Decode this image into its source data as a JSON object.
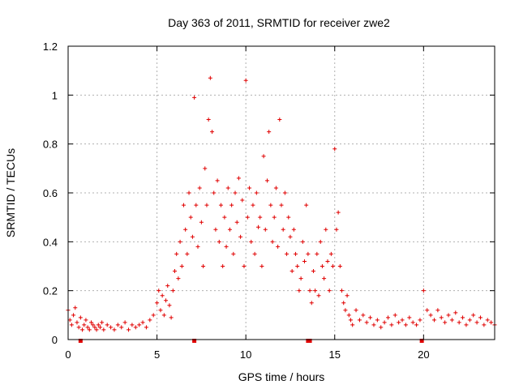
{
  "chart_data": {
    "type": "scatter",
    "title": "Day 363 of 2011, SRMTID for receiver zwe2",
    "xlabel": "GPS time / hours",
    "ylabel": "SRMTID / TECUs",
    "xlim": [
      0,
      24
    ],
    "ylim": [
      0,
      1.2
    ],
    "xticks": [
      0,
      5,
      10,
      15,
      20
    ],
    "xtick_labels": [
      "0",
      "5",
      "10",
      "15",
      "20"
    ],
    "yticks": [
      0,
      0.2,
      0.4,
      0.6,
      0.8,
      1,
      1.2
    ],
    "ytick_labels": [
      "0",
      "0.2",
      "0.4",
      "0.6",
      "0.8",
      "1",
      "1.2"
    ],
    "grid": true,
    "marker": "+",
    "marker_color": "#e00000",
    "series": [
      {
        "name": "zwe2",
        "description": "approximate sampled envelope of the plotted scatter",
        "x": [
          0.0,
          0.1,
          0.2,
          0.3,
          0.4,
          0.5,
          0.6,
          0.7,
          0.8,
          0.9,
          1.0,
          1.1,
          1.2,
          1.3,
          1.4,
          1.5,
          1.6,
          1.7,
          1.8,
          1.9,
          2.0,
          2.2,
          2.4,
          2.6,
          2.8,
          3.0,
          3.2,
          3.4,
          3.6,
          3.8,
          4.0,
          4.2,
          4.4,
          4.6,
          4.8,
          5.0,
          5.1,
          5.2,
          5.3,
          5.4,
          5.5,
          5.6,
          5.7,
          5.8,
          5.9,
          6.0,
          6.1,
          6.2,
          6.3,
          6.4,
          6.5,
          6.6,
          6.7,
          6.8,
          6.9,
          7.0,
          7.1,
          7.2,
          7.3,
          7.4,
          7.5,
          7.6,
          7.7,
          7.8,
          7.9,
          8.0,
          8.1,
          8.2,
          8.3,
          8.4,
          8.5,
          8.6,
          8.7,
          8.8,
          8.9,
          9.0,
          9.1,
          9.2,
          9.3,
          9.4,
          9.5,
          9.6,
          9.7,
          9.8,
          9.9,
          10.0,
          10.1,
          10.2,
          10.3,
          10.4,
          10.5,
          10.6,
          10.7,
          10.8,
          10.9,
          11.0,
          11.1,
          11.2,
          11.3,
          11.4,
          11.5,
          11.6,
          11.7,
          11.8,
          11.9,
          12.0,
          12.1,
          12.2,
          12.3,
          12.4,
          12.5,
          12.6,
          12.7,
          12.8,
          12.9,
          13.0,
          13.1,
          13.2,
          13.3,
          13.4,
          13.5,
          13.6,
          13.7,
          13.8,
          13.9,
          14.0,
          14.1,
          14.2,
          14.3,
          14.4,
          14.5,
          14.6,
          14.7,
          14.8,
          14.9,
          15.0,
          15.1,
          15.2,
          15.3,
          15.4,
          15.5,
          15.6,
          15.7,
          15.8,
          15.9,
          16.0,
          16.2,
          16.4,
          16.6,
          16.8,
          17.0,
          17.2,
          17.4,
          17.6,
          17.8,
          18.0,
          18.2,
          18.4,
          18.6,
          18.8,
          19.0,
          19.2,
          19.4,
          19.6,
          19.8,
          20.0,
          20.2,
          20.4,
          20.6,
          20.8,
          21.0,
          21.2,
          21.4,
          21.6,
          21.8,
          22.0,
          22.2,
          22.4,
          22.6,
          22.8,
          23.0,
          23.2,
          23.4,
          23.6,
          23.8,
          24.0
        ],
        "y": [
          0.12,
          0.08,
          0.06,
          0.1,
          0.13,
          0.07,
          0.05,
          0.09,
          0.04,
          0.06,
          0.08,
          0.05,
          0.04,
          0.07,
          0.06,
          0.05,
          0.04,
          0.06,
          0.05,
          0.07,
          0.04,
          0.06,
          0.05,
          0.04,
          0.06,
          0.05,
          0.07,
          0.04,
          0.06,
          0.05,
          0.06,
          0.07,
          0.05,
          0.08,
          0.1,
          0.15,
          0.2,
          0.12,
          0.18,
          0.1,
          0.16,
          0.22,
          0.14,
          0.09,
          0.2,
          0.28,
          0.35,
          0.25,
          0.4,
          0.3,
          0.55,
          0.45,
          0.35,
          0.6,
          0.5,
          0.42,
          0.99,
          0.55,
          0.38,
          0.62,
          0.48,
          0.3,
          0.7,
          0.55,
          0.9,
          1.07,
          0.85,
          0.6,
          0.45,
          0.65,
          0.4,
          0.55,
          0.3,
          0.5,
          0.38,
          0.62,
          0.45,
          0.55,
          0.35,
          0.6,
          0.48,
          0.66,
          0.42,
          0.57,
          0.3,
          1.06,
          0.5,
          0.62,
          0.4,
          0.55,
          0.35,
          0.6,
          0.46,
          0.5,
          0.3,
          0.75,
          0.45,
          0.65,
          0.85,
          0.55,
          0.4,
          0.5,
          0.62,
          0.38,
          0.9,
          0.55,
          0.45,
          0.6,
          0.35,
          0.5,
          0.42,
          0.28,
          0.45,
          0.35,
          0.3,
          0.2,
          0.25,
          0.4,
          0.32,
          0.55,
          0.35,
          0.2,
          0.15,
          0.28,
          0.2,
          0.35,
          0.18,
          0.4,
          0.3,
          0.25,
          0.45,
          0.32,
          0.2,
          0.35,
          0.3,
          0.78,
          0.45,
          0.52,
          0.3,
          0.2,
          0.15,
          0.12,
          0.18,
          0.1,
          0.08,
          0.06,
          0.12,
          0.08,
          0.1,
          0.07,
          0.09,
          0.06,
          0.08,
          0.05,
          0.07,
          0.09,
          0.06,
          0.1,
          0.07,
          0.08,
          0.06,
          0.09,
          0.07,
          0.06,
          0.08,
          0.2,
          0.12,
          0.1,
          0.08,
          0.12,
          0.09,
          0.07,
          0.1,
          0.08,
          0.11,
          0.07,
          0.09,
          0.06,
          0.08,
          0.1,
          0.07,
          0.09,
          0.06,
          0.08,
          0.07,
          0.06
        ]
      }
    ],
    "zero_markers_x": [
      0.7,
      7.1,
      13.5,
      13.6,
      19.9
    ]
  }
}
